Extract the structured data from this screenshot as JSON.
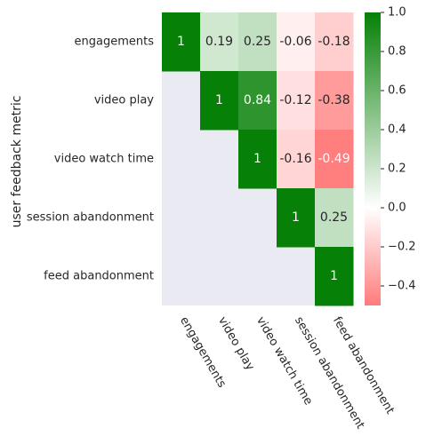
{
  "chart_data": {
    "type": "heatmap",
    "title": "",
    "xlabel": "",
    "ylabel": "user feedback metric",
    "rows": [
      "engagements",
      "video play",
      "video watch time",
      "session abandonment",
      "feed abandonment"
    ],
    "columns": [
      "engagements",
      "video play",
      "video watch time",
      "session abandonment",
      "feed abandonment"
    ],
    "values": [
      [
        1,
        0.19,
        0.25,
        -0.06,
        -0.18
      ],
      [
        null,
        1,
        0.84,
        -0.12,
        -0.38
      ],
      [
        null,
        null,
        1,
        -0.16,
        -0.49
      ],
      [
        null,
        null,
        null,
        1,
        0.25
      ],
      [
        null,
        null,
        null,
        null,
        1
      ]
    ],
    "value_labels": [
      [
        "1",
        "0.19",
        "0.25",
        "-0.06",
        "-0.18"
      ],
      [
        null,
        "1",
        "0.84",
        "-0.12",
        "-0.38"
      ],
      [
        null,
        null,
        "1",
        "-0.16",
        "-0.49"
      ],
      [
        null,
        null,
        null,
        "1",
        "0.25"
      ],
      [
        null,
        null,
        null,
        null,
        "1"
      ]
    ],
    "masked": "lower-triangle",
    "colorbar": {
      "vmin": -0.5,
      "vmax": 1.0,
      "ticks": [
        1.0,
        0.8,
        0.6,
        0.4,
        0.2,
        0.0,
        -0.2,
        -0.4
      ],
      "tick_labels": [
        "1.0",
        "0.8",
        "0.6",
        "0.4",
        "0.2",
        "0.0",
        "−0.2",
        "−0.4"
      ]
    },
    "colors": {
      "negative": "#ff7b7b",
      "zero": "#ffffff",
      "positive": "#068006",
      "masked": "#eaeaf2"
    }
  }
}
